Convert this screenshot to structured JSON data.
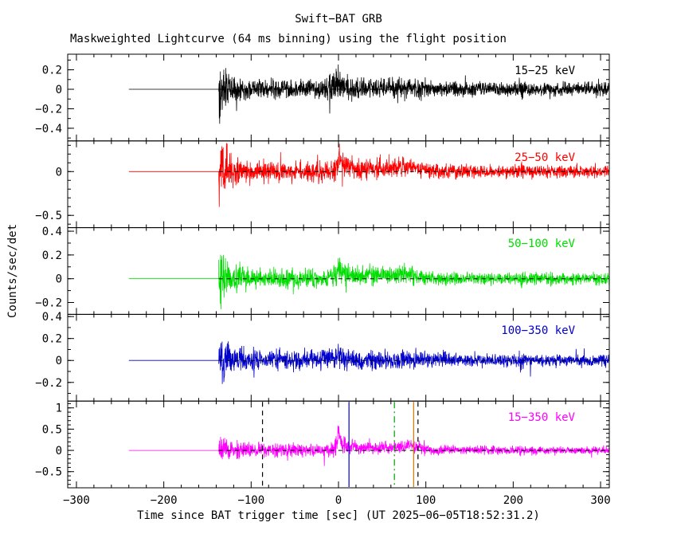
{
  "chart_data": {
    "type": "line",
    "title": "Swift−BAT GRB",
    "subtitle": "Maskweighted Lightcurve (64 ms binning) using the flight position",
    "xlabel": "Time since BAT trigger time [sec] (UT 2025−06−05T18:52:31.2)",
    "ylabel": "Counts/sec/det",
    "xlim": [
      -310,
      310
    ],
    "x_major_ticks": [
      -300,
      -200,
      -100,
      0,
      100,
      200,
      300
    ],
    "x_minor_step": 20,
    "grid": false,
    "legend_position": "inside-top-right-per-panel",
    "data_start": -240,
    "noise_start": -137,
    "data_end": 310,
    "bin_sec": 0.25,
    "zero_line": {
      "style": "dashed",
      "color": "#000000"
    },
    "panels": [
      {
        "label": "15−25 keV",
        "color": "#000000",
        "ylim": [
          -0.53,
          0.36
        ],
        "y_major_ticks": [
          0.2,
          0,
          -0.2,
          -0.4
        ],
        "y_minor_step": 0.1,
        "seed": 101,
        "amp": {
          "t": [
            -137,
            -132,
            -124,
            -110,
            -90,
            -60,
            -20,
            -6,
            0,
            6,
            20,
            50,
            75,
            90,
            105,
            130,
            204,
            209,
            214,
            310
          ],
          "v": [
            0.42,
            0.28,
            0.17,
            0.12,
            0.11,
            0.105,
            0.11,
            0.14,
            0.18,
            0.14,
            0.11,
            0.105,
            0.115,
            0.105,
            0.085,
            0.08,
            0.075,
            0.12,
            0.075,
            0.072
          ]
        },
        "mean": {
          "t": [
            -137,
            -10,
            -3,
            0,
            5,
            15,
            60,
            80,
            95,
            120,
            310
          ],
          "v": [
            0,
            0.005,
            0.02,
            0.05,
            0.03,
            0.015,
            0.01,
            0.02,
            0.01,
            0,
            0
          ]
        }
      },
      {
        "label": "25−50 keV",
        "color": "#ff0000",
        "ylim": [
          -0.64,
          0.35
        ],
        "y_major_ticks": [
          0,
          -0.5
        ],
        "y_minor_step": 0.1,
        "seed": 202,
        "amp": {
          "t": [
            -137,
            -132,
            -124,
            -110,
            -90,
            -60,
            -20,
            -6,
            0,
            6,
            20,
            50,
            80,
            95,
            110,
            130,
            204,
            209,
            214,
            310
          ],
          "v": [
            0.5,
            0.32,
            0.2,
            0.14,
            0.125,
            0.12,
            0.125,
            0.15,
            0.2,
            0.15,
            0.12,
            0.115,
            0.12,
            0.1,
            0.085,
            0.08,
            0.075,
            0.12,
            0.075,
            0.072
          ]
        },
        "mean": {
          "t": [
            -137,
            -15,
            -5,
            -1,
            0,
            3,
            10,
            30,
            55,
            65,
            80,
            90,
            100,
            115,
            310
          ],
          "v": [
            0,
            0.005,
            0.03,
            0.1,
            0.22,
            0.12,
            0.05,
            0.03,
            0.04,
            0.05,
            0.06,
            0.04,
            0.015,
            0,
            0
          ]
        }
      },
      {
        "label": "50−100 keV",
        "color": "#00dd00",
        "ylim": [
          -0.3,
          0.43
        ],
        "y_major_ticks": [
          0.4,
          0.2,
          0,
          -0.2
        ],
        "y_minor_step": 0.1,
        "seed": 303,
        "amp": {
          "t": [
            -137,
            -132,
            -124,
            -110,
            -90,
            -60,
            -20,
            -6,
            0,
            6,
            20,
            50,
            80,
            95,
            110,
            130,
            204,
            209,
            214,
            310
          ],
          "v": [
            0.3,
            0.2,
            0.13,
            0.09,
            0.082,
            0.078,
            0.082,
            0.1,
            0.14,
            0.1,
            0.08,
            0.078,
            0.082,
            0.07,
            0.06,
            0.057,
            0.053,
            0.09,
            0.053,
            0.05
          ]
        },
        "mean": {
          "t": [
            -137,
            -15,
            -5,
            -1,
            0,
            3,
            10,
            30,
            55,
            80,
            90,
            100,
            115,
            310
          ],
          "v": [
            0,
            0.003,
            0.02,
            0.06,
            0.13,
            0.07,
            0.03,
            0.02,
            0.03,
            0.04,
            0.02,
            0.01,
            0,
            0
          ]
        }
      },
      {
        "label": "100−350 keV",
        "color": "#0000cc",
        "ylim": [
          -0.37,
          0.42
        ],
        "y_major_ticks": [
          0.4,
          0.2,
          0,
          -0.2
        ],
        "y_minor_step": 0.1,
        "seed": 404,
        "amp": {
          "t": [
            -137,
            -132,
            -124,
            -110,
            -90,
            -60,
            -20,
            -6,
            0,
            6,
            20,
            50,
            80,
            95,
            110,
            130,
            204,
            209,
            214,
            310
          ],
          "v": [
            0.34,
            0.22,
            0.14,
            0.105,
            0.095,
            0.09,
            0.095,
            0.11,
            0.13,
            0.11,
            0.09,
            0.088,
            0.09,
            0.08,
            0.068,
            0.063,
            0.06,
            0.1,
            0.06,
            0.058
          ]
        },
        "mean": {
          "t": [
            -137,
            -5,
            0,
            6,
            30,
            310
          ],
          "v": [
            0,
            0.01,
            0.035,
            0.01,
            0.003,
            0
          ]
        }
      },
      {
        "label": "15−350 keV",
        "color": "#ff00ff",
        "ylim": [
          -0.88,
          1.16
        ],
        "y_major_ticks": [
          1,
          0.5,
          0,
          -0.5
        ],
        "y_minor_step": 0.1,
        "seed": 505,
        "amp": {
          "t": [
            -137,
            -132,
            -124,
            -110,
            -90,
            -60,
            -20,
            -6,
            0,
            6,
            20,
            50,
            80,
            95,
            110,
            130,
            204,
            209,
            214,
            310
          ],
          "v": [
            0.6,
            0.4,
            0.27,
            0.19,
            0.17,
            0.16,
            0.17,
            0.21,
            0.3,
            0.22,
            0.16,
            0.155,
            0.165,
            0.14,
            0.115,
            0.107,
            0.1,
            0.17,
            0.1,
            0.096
          ]
        },
        "mean": {
          "t": [
            -137,
            -15,
            -5,
            -1,
            0,
            3,
            10,
            30,
            55,
            65,
            80,
            90,
            100,
            115,
            310
          ],
          "v": [
            0,
            0.01,
            0.05,
            0.18,
            0.45,
            0.2,
            0.08,
            0.05,
            0.07,
            0.09,
            0.11,
            0.07,
            0.03,
            0.005,
            0
          ]
        }
      }
    ],
    "event_lines": [
      {
        "t": -87,
        "color": "#000000",
        "style": "dashed",
        "panel": 4
      },
      {
        "t": 12,
        "color": "#0000cc",
        "style": "solid",
        "panel": 4
      },
      {
        "t": 64,
        "color": "#00a000",
        "style": "dashdot",
        "panel": 4
      },
      {
        "t": 86,
        "color": "#cc7a00",
        "style": "solid",
        "panel": 4
      },
      {
        "t": 91,
        "color": "#000000",
        "style": "dashed",
        "panel": 4
      }
    ]
  }
}
